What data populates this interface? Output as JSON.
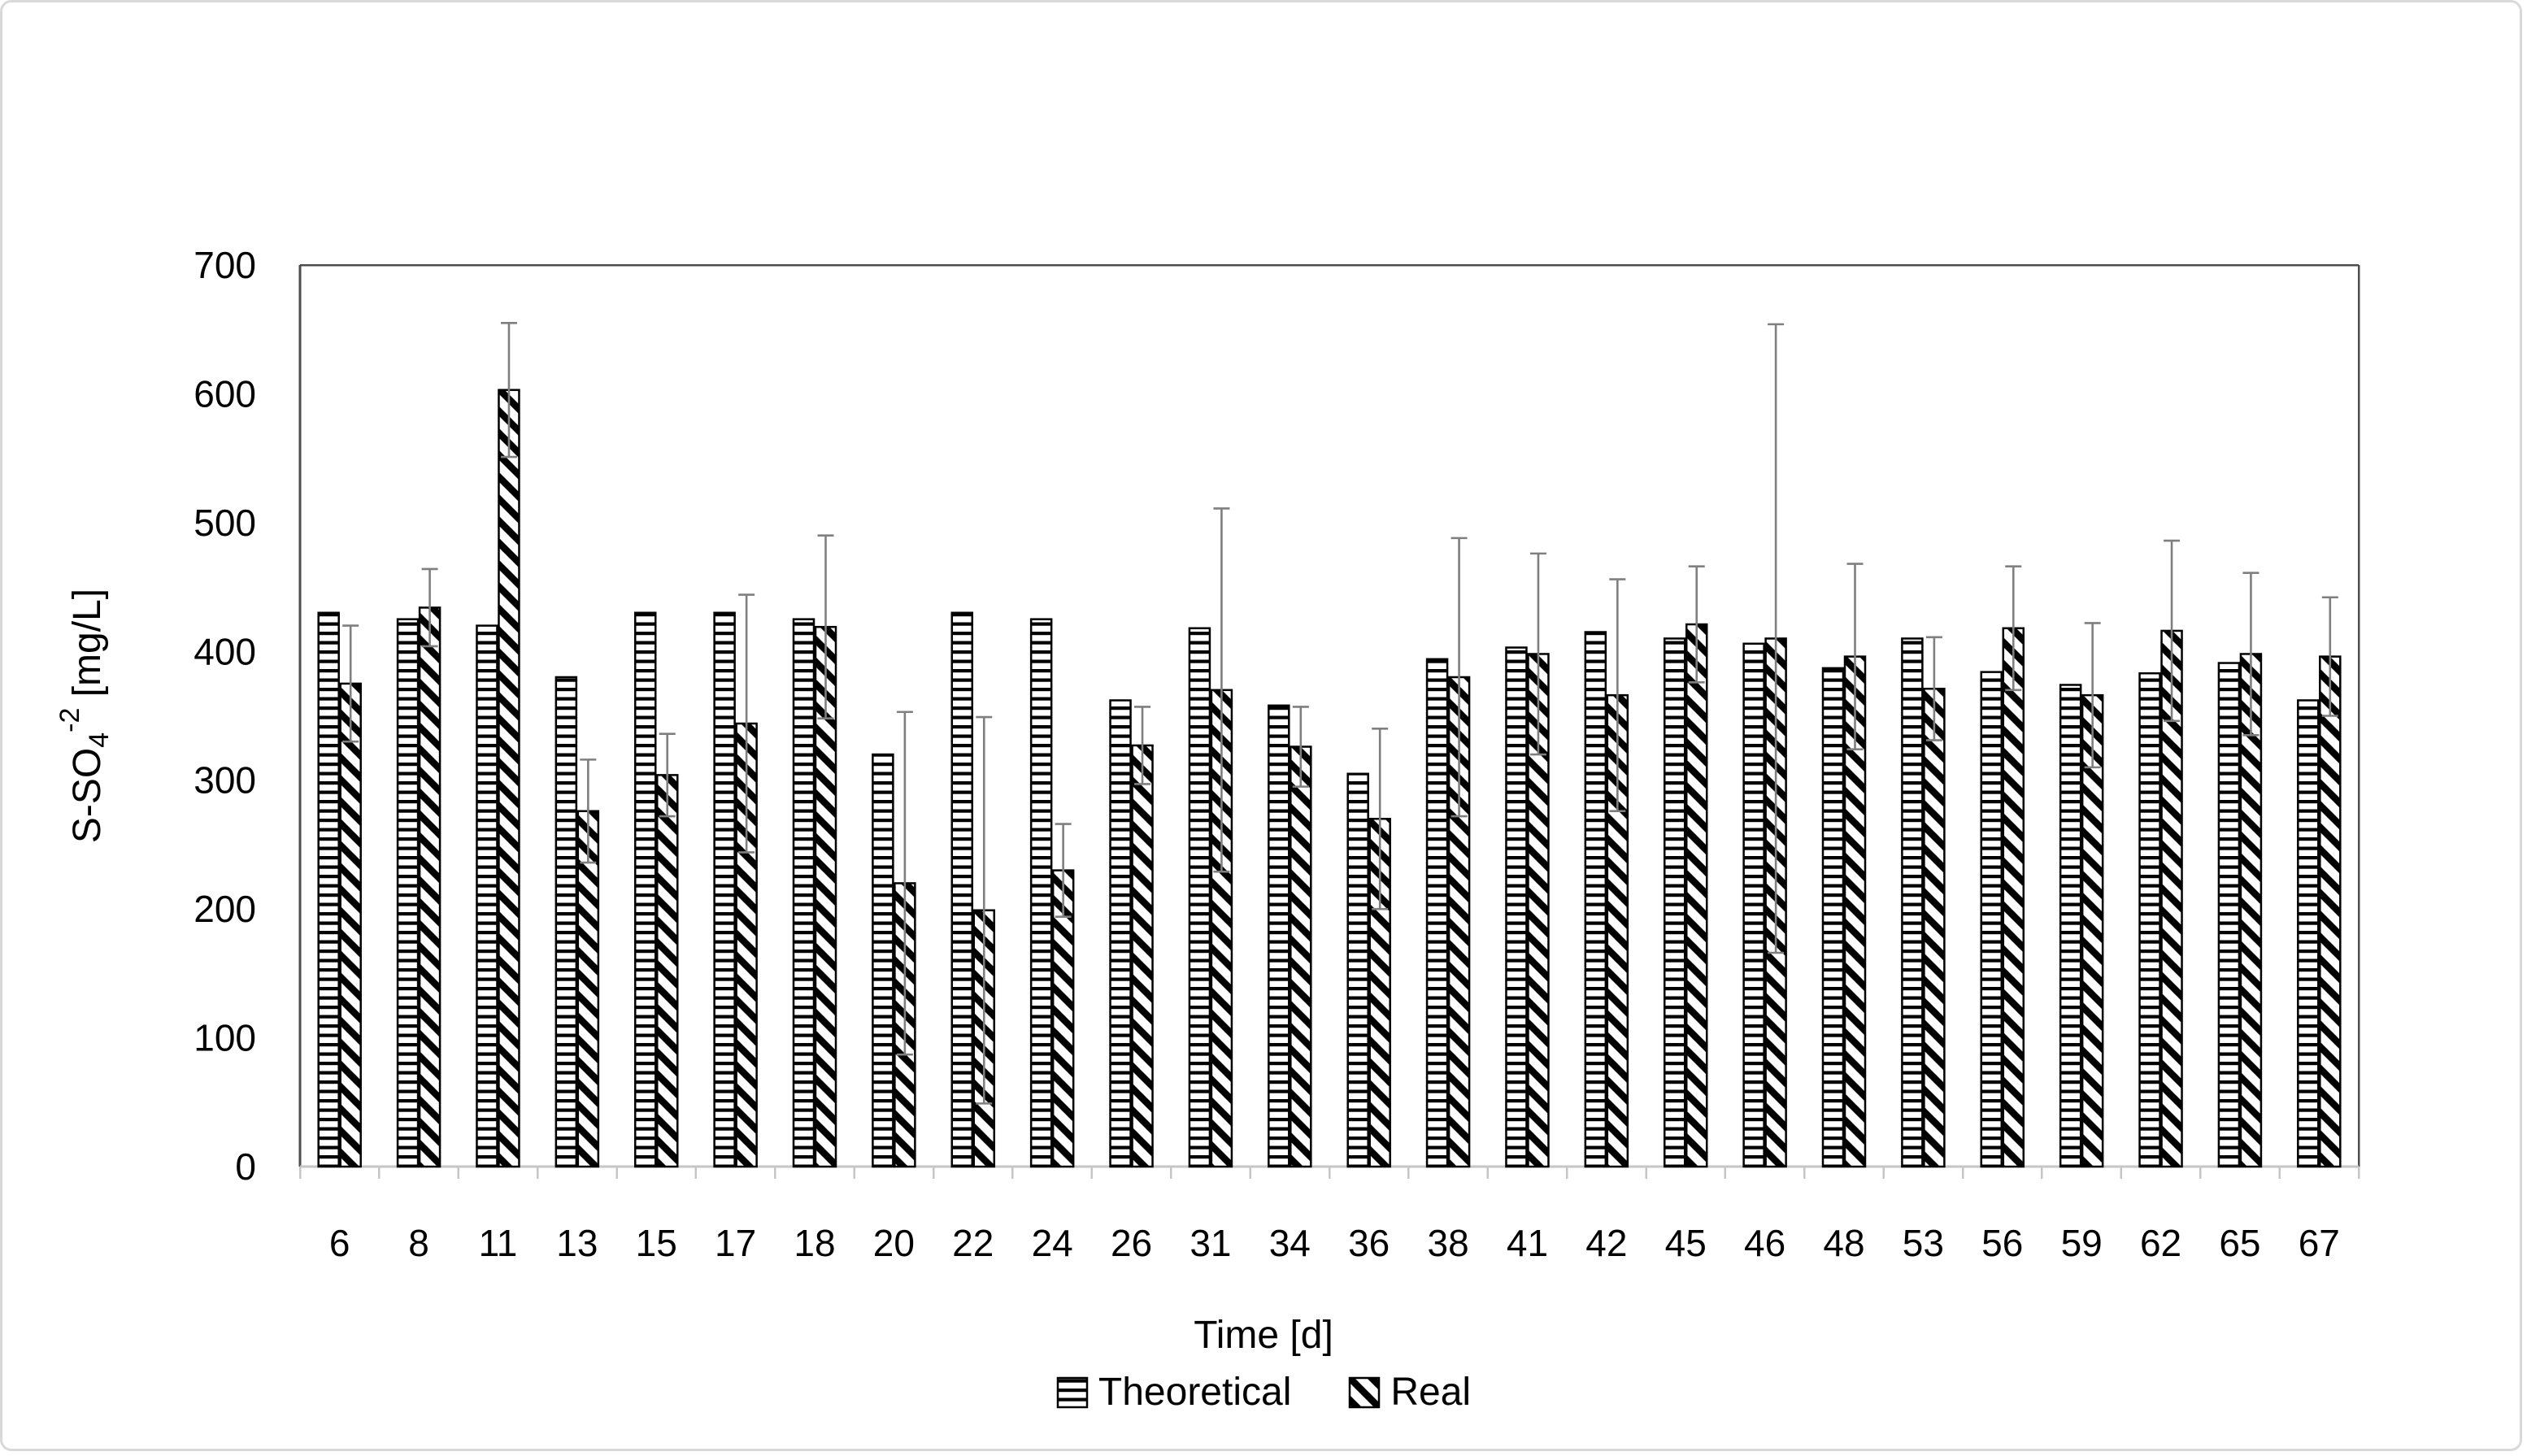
{
  "figure": {
    "background": "#ffffff",
    "border_color": "#d9d9d9"
  },
  "chart_data": {
    "type": "bar",
    "title": "",
    "xlabel": "Time [d]",
    "ylabel": "S-SO4-2 [mg/L]",
    "ylabel_parts": {
      "prefix": "S-SO",
      "sub": "4",
      "sup": "-2",
      "suffix": " [mg/L]"
    },
    "ylim": [
      0,
      700
    ],
    "yticks": [
      0,
      100,
      200,
      300,
      400,
      500,
      600,
      700
    ],
    "grid": false,
    "legend_position": "bottom",
    "categories": [
      6,
      8,
      11,
      13,
      15,
      17,
      18,
      20,
      22,
      24,
      26,
      31,
      34,
      36,
      38,
      41,
      42,
      45,
      46,
      48,
      53,
      56,
      59,
      62,
      65,
      67
    ],
    "series": [
      {
        "name": "Theoretical",
        "pattern": "horizontal-lines",
        "values": [
          430,
          425,
          420,
          380,
          430,
          430,
          425,
          320,
          430,
          425,
          362,
          418,
          358,
          305,
          394,
          403,
          415,
          410,
          406,
          387,
          410,
          384,
          374,
          383,
          391,
          362
        ]
      },
      {
        "name": "Real",
        "pattern": "diagonal-stripes",
        "values": [
          375,
          434,
          603,
          276,
          304,
          344,
          419,
          220,
          199,
          230,
          327,
          370,
          326,
          270,
          380,
          398,
          366,
          421,
          410,
          396,
          371,
          418,
          366,
          416,
          398,
          396
        ],
        "error": [
          45,
          30,
          52,
          40,
          32,
          100,
          71,
          133,
          150,
          36,
          30,
          141,
          31,
          70,
          108,
          78,
          90,
          45,
          244,
          72,
          40,
          48,
          56,
          70,
          63,
          46
        ]
      }
    ],
    "bar_fill": "#ffffff",
    "bar_stroke": "#000000",
    "error_bar_color": "#7f7f7f",
    "axis_border_color": "#4d4d4d",
    "baseline_color": "#c6c6c6",
    "tick_color": "#c6c6c6",
    "text_color": "#000000"
  }
}
